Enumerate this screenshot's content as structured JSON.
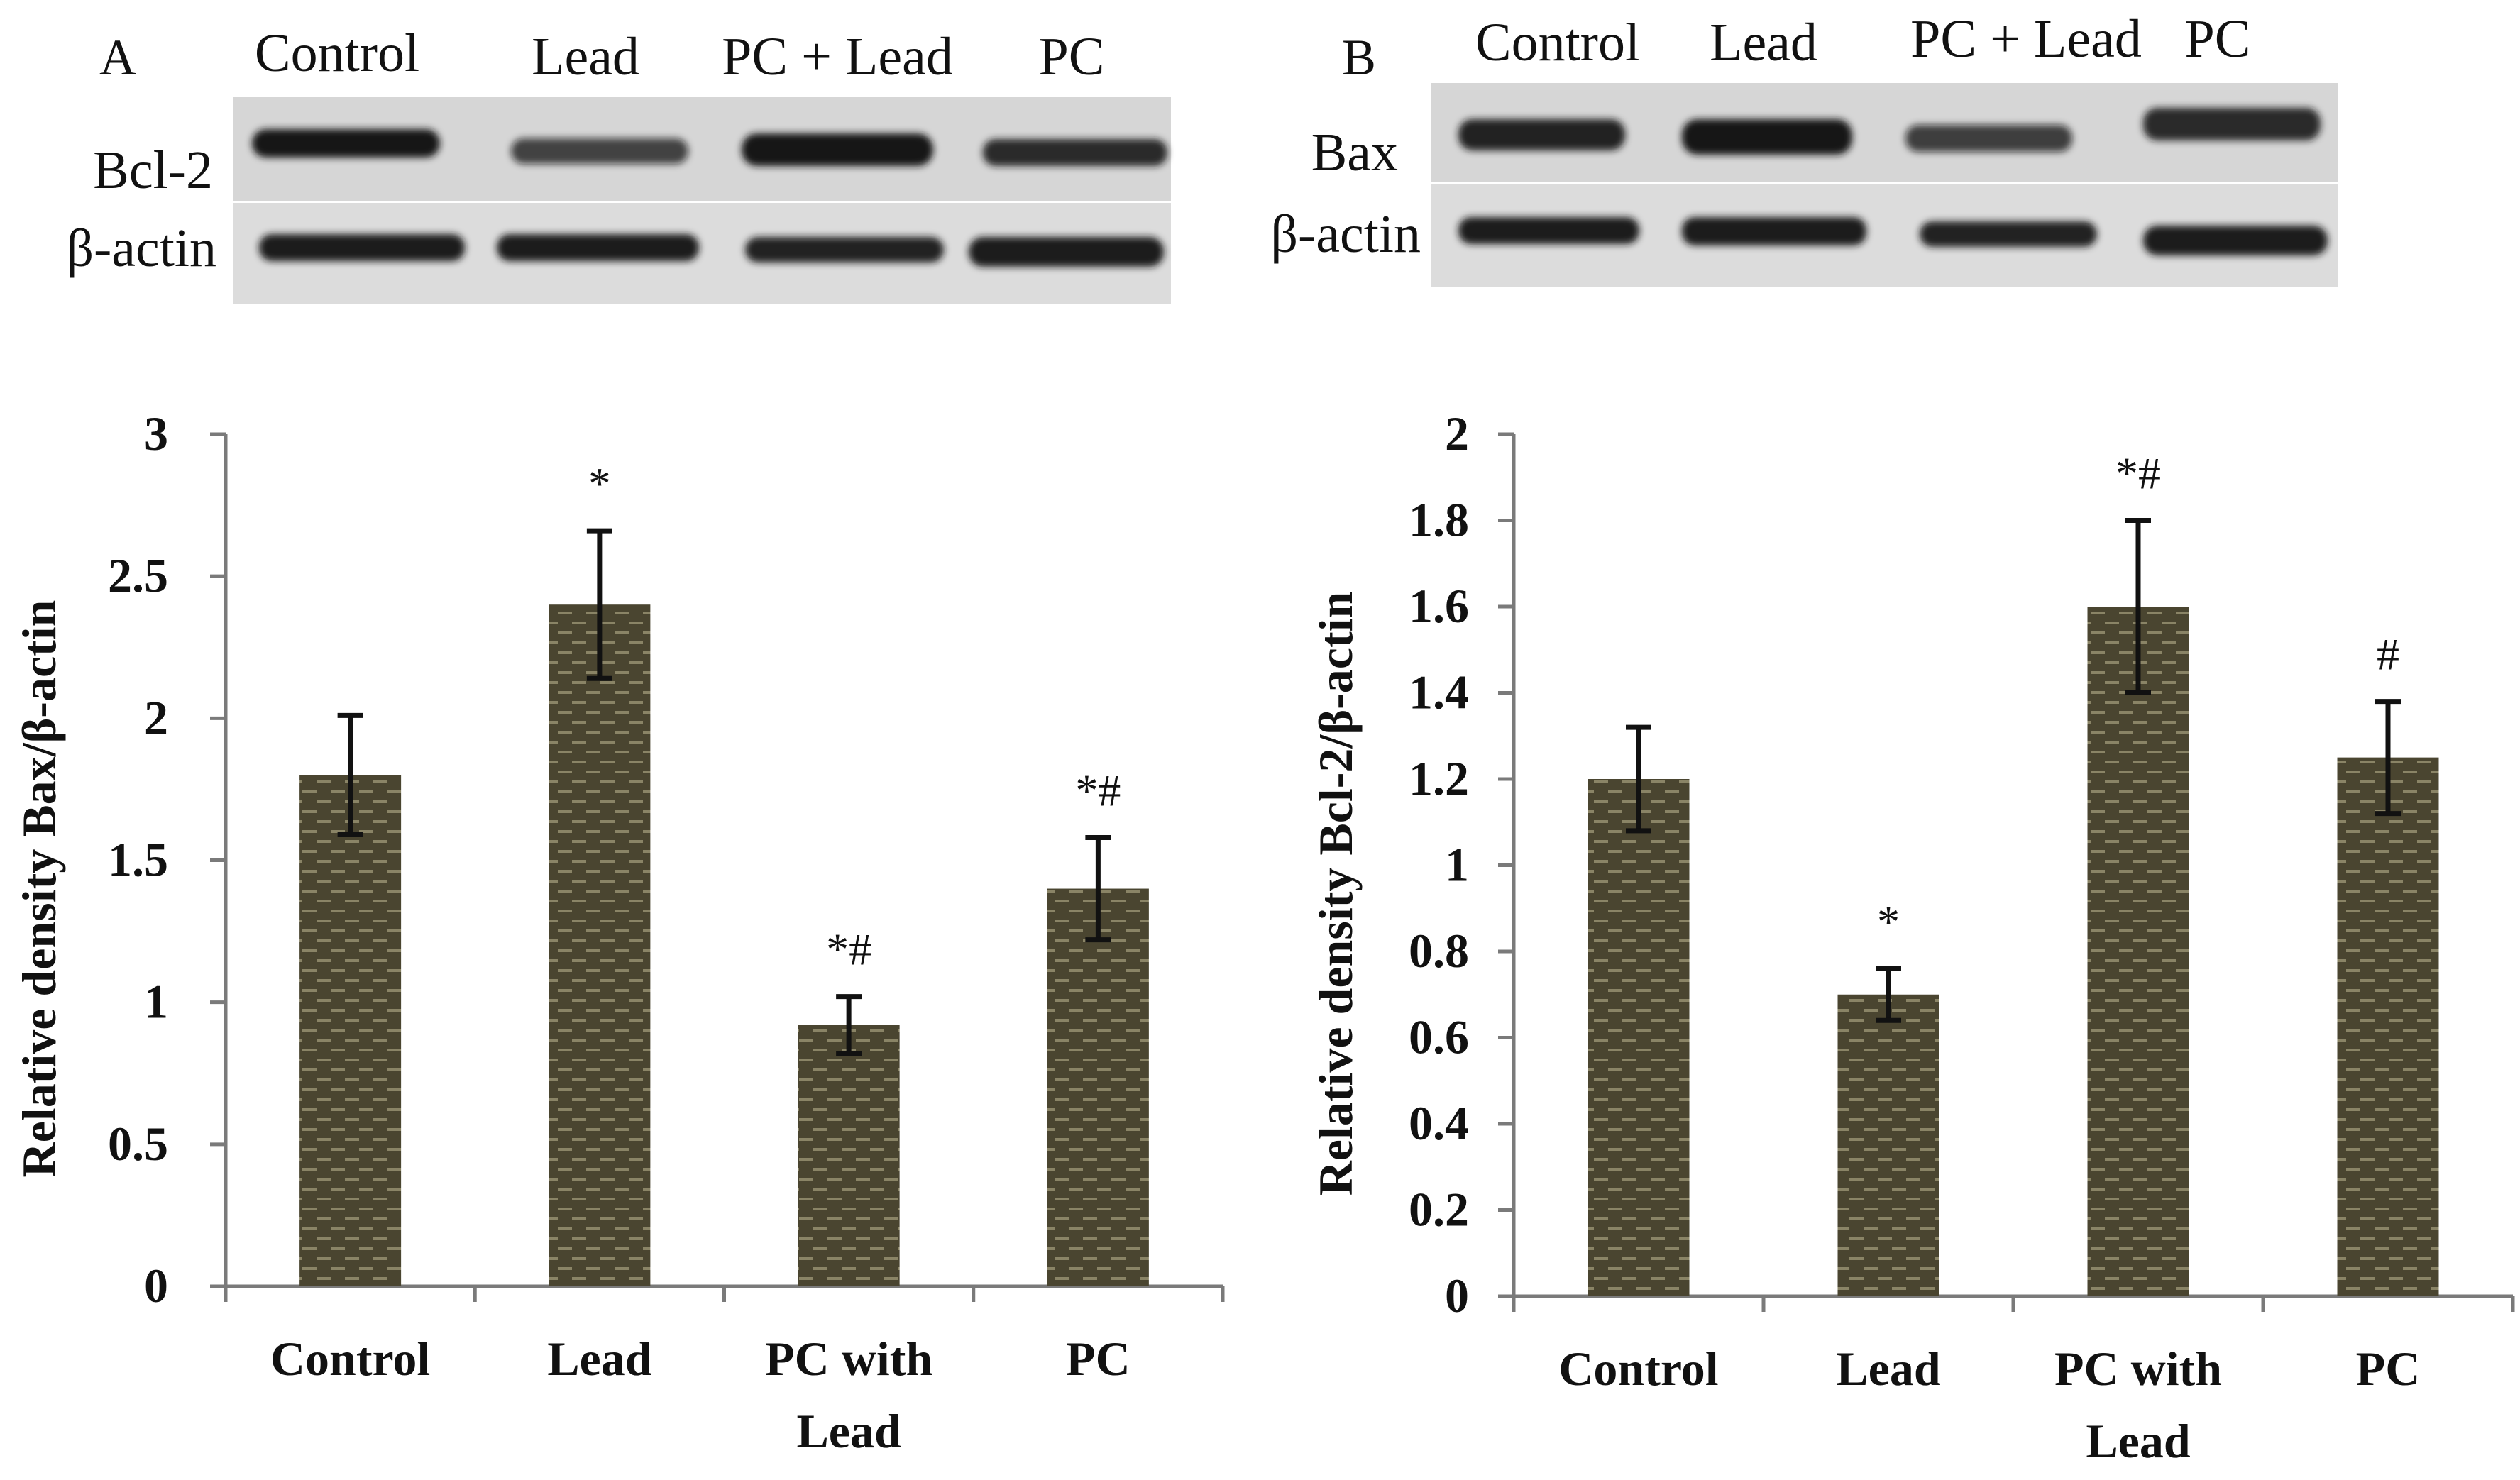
{
  "blots": [
    {
      "letter": "A",
      "lanes": [
        "Control",
        "Lead",
        "PC + Lead",
        "PC"
      ],
      "rows": [
        {
          "label": "Bcl-2",
          "intensity": [
            1.0,
            0.62,
            1.0,
            0.85
          ]
        },
        {
          "label": "β-actin",
          "intensity": [
            0.95,
            0.95,
            0.9,
            0.95
          ]
        }
      ]
    },
    {
      "letter": "B",
      "lanes": [
        "Control",
        "Lead",
        "PC + Lead",
        "PC"
      ],
      "rows": [
        {
          "label": "Bax",
          "intensity": [
            0.9,
            1.0,
            0.65,
            0.85
          ]
        },
        {
          "label": "β-actin",
          "intensity": [
            0.95,
            0.95,
            0.9,
            0.95
          ]
        }
      ]
    }
  ],
  "colors": {
    "bar": "#4a4530",
    "dash": "#8a8466",
    "blot_bg": "#d6d6d6",
    "band": "#141414"
  },
  "chart_data": [
    {
      "type": "bar",
      "title": "",
      "xlabel": "",
      "ylabel": "Relative density Bax/β-actin",
      "categories": [
        "Control",
        "Lead",
        "PC with Lead",
        "PC"
      ],
      "category_lines": [
        [
          "Control"
        ],
        [
          "Lead"
        ],
        [
          "PC with",
          "Lead"
        ],
        [
          "PC"
        ]
      ],
      "values": [
        1.8,
        2.4,
        0.92,
        1.4
      ],
      "errors": [
        0.21,
        0.26,
        0.1,
        0.18
      ],
      "annotations": [
        "",
        "*",
        "*#",
        "*#"
      ],
      "ylim": [
        0,
        3
      ],
      "yticks": [
        0,
        0.5,
        1,
        1.5,
        2,
        2.5,
        3
      ],
      "ytick_labels": [
        "0",
        "0.5",
        "1",
        "1.5",
        "2",
        "2.5",
        "3"
      ],
      "grid": false
    },
    {
      "type": "bar",
      "title": "",
      "xlabel": "",
      "ylabel": "Relative density Bcl-2/β-actin",
      "categories": [
        "Control",
        "Lead",
        "PC with Lead",
        "PC"
      ],
      "category_lines": [
        [
          "Control"
        ],
        [
          "Lead"
        ],
        [
          "PC with",
          "Lead"
        ],
        [
          "PC"
        ]
      ],
      "values": [
        1.2,
        0.7,
        1.6,
        1.25
      ],
      "errors": [
        0.12,
        0.06,
        0.2,
        0.13
      ],
      "annotations": [
        "",
        "*",
        "*#",
        "#"
      ],
      "ylim": [
        0,
        2
      ],
      "yticks": [
        0,
        0.2,
        0.4,
        0.6,
        0.8,
        1,
        1.2,
        1.4,
        1.6,
        1.8,
        2
      ],
      "ytick_labels": [
        "0",
        "0.2",
        "0.4",
        "0.6",
        "0.8",
        "1",
        "1.2",
        "1.4",
        "1.6",
        "1.8",
        "2"
      ],
      "grid": false
    }
  ]
}
